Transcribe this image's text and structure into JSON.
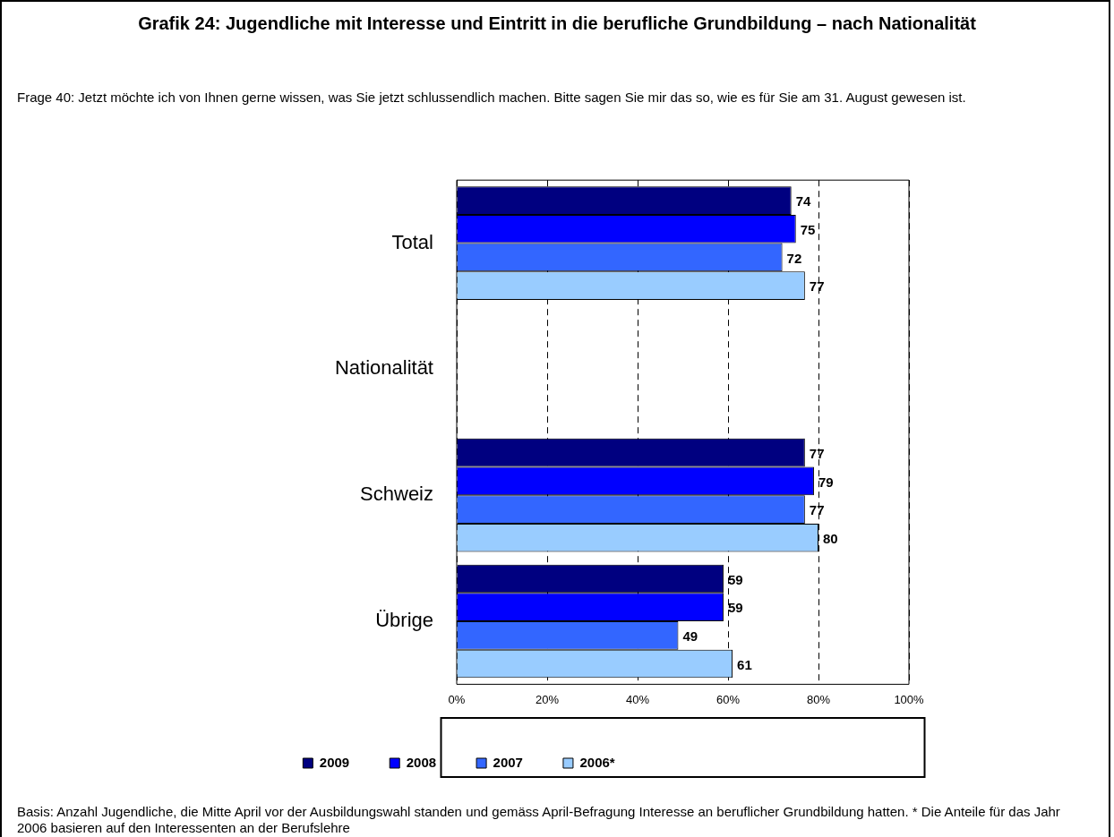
{
  "chart_data": {
    "type": "bar",
    "orientation": "horizontal",
    "title": "Grafik 24: Jugendliche mit Interesse und Eintritt in die berufliche Grundbildung – nach Nationalität",
    "categories": [
      "Total",
      "Nationalität",
      "Schweiz",
      "Übrige"
    ],
    "series": [
      {
        "name": "2009",
        "color": "#000080",
        "values": [
          74,
          null,
          77,
          59
        ]
      },
      {
        "name": "2008",
        "color": "#0000ff",
        "values": [
          75,
          null,
          79,
          59
        ]
      },
      {
        "name": "2007",
        "color": "#3366ff",
        "values": [
          72,
          null,
          77,
          49
        ]
      },
      {
        "name": "2006*",
        "color": "#99ccff",
        "values": [
          77,
          null,
          80,
          61
        ]
      }
    ],
    "xlim": [
      0,
      100
    ],
    "xticks": [
      {
        "value": 0,
        "label": "0%"
      },
      {
        "value": 20,
        "label": "20%"
      },
      {
        "value": 40,
        "label": "40%"
      },
      {
        "value": 60,
        "label": "60%"
      },
      {
        "value": 80,
        "label": "80%"
      },
      {
        "value": 100,
        "label": "100%"
      }
    ],
    "grid": "x",
    "legend": "bottom",
    "data_labels": true,
    "annotations": [
      "Frage 40: Jetzt möchte ich von Ihnen gerne wissen, was Sie jetzt schlussendlich machen. Bitte sagen Sie mir das so, wie es für Sie am 31. August gewesen ist.",
      "Basis: Anzahl Jugendliche, die Mitte April vor der Ausbildungswahl standen und gemäss April-Befragung Interesse an beruflicher Grundbildung hatten. * Die Anteile für das Jahr 2006 basieren auf den Interessenten an der Berufslehre"
    ]
  }
}
